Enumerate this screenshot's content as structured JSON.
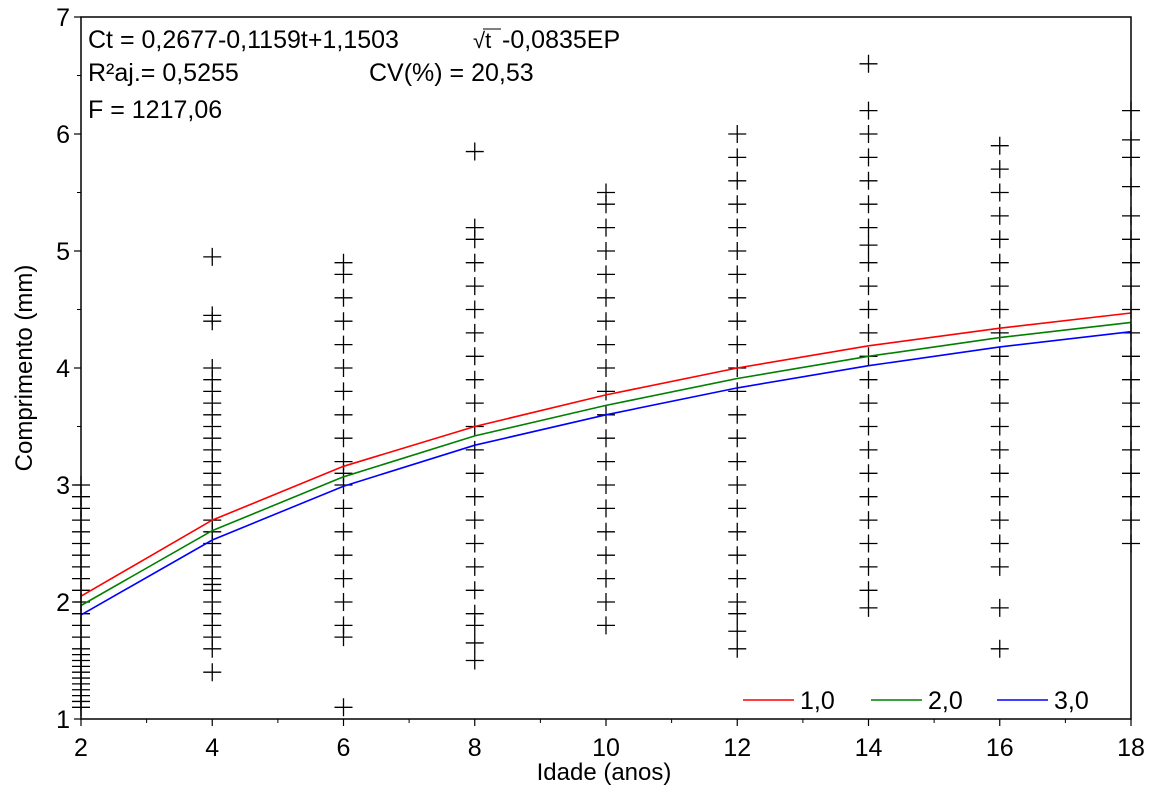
{
  "chart_data": {
    "type": "scatter",
    "annotations": {
      "equation_prefix": "Ct = 0,2677-0,1159t+1,1503",
      "equation_sqrt": "√t",
      "equation_suffix": "-0,0835EP",
      "r2": "R²aj.= 0,5255",
      "cv": "CV(%) = 20,53",
      "f": "F = 1217,06"
    },
    "xlabel": "Idade (anos)",
    "ylabel": "Comprimento (mm)",
    "xlim": [
      2,
      18
    ],
    "ylim": [
      1,
      7
    ],
    "x_ticks": [
      2,
      4,
      6,
      8,
      10,
      12,
      14,
      16,
      18
    ],
    "y_ticks": [
      1,
      2,
      3,
      4,
      5,
      6,
      7
    ],
    "x_tick_labels": [
      "2",
      "4",
      "6",
      "8",
      "10",
      "12",
      "14",
      "16",
      "18"
    ],
    "y_tick_labels": [
      "1",
      "2",
      "3",
      "4",
      "5",
      "6",
      "7"
    ],
    "grid": false,
    "legend_position": "bottom-right",
    "observations": [
      {
        "x": 2,
        "y": [
          1.1,
          1.15,
          1.2,
          1.25,
          1.3,
          1.35,
          1.4,
          1.45,
          1.5,
          1.55,
          1.6,
          1.7,
          1.8,
          1.9,
          2.0,
          2.1,
          2.2,
          2.3,
          2.4,
          2.5,
          2.6,
          2.7,
          2.8,
          2.9,
          3.0
        ]
      },
      {
        "x": 4,
        "y": [
          1.4,
          1.6,
          1.7,
          1.8,
          1.9,
          2.0,
          2.1,
          2.15,
          2.2,
          2.3,
          2.4,
          2.5,
          2.6,
          2.7,
          2.8,
          2.9,
          3.0,
          3.1,
          3.2,
          3.3,
          3.4,
          3.5,
          3.6,
          3.7,
          3.8,
          3.9,
          4.0,
          4.4,
          4.45,
          4.95
        ]
      },
      {
        "x": 6,
        "y": [
          1.1,
          1.7,
          1.8,
          2.0,
          2.2,
          2.4,
          2.6,
          2.8,
          3.0,
          3.1,
          3.2,
          3.4,
          3.6,
          3.8,
          4.0,
          4.2,
          4.4,
          4.6,
          4.8,
          4.9
        ]
      },
      {
        "x": 8,
        "y": [
          1.5,
          1.65,
          1.8,
          1.9,
          2.1,
          2.3,
          2.5,
          2.7,
          2.9,
          3.1,
          3.3,
          3.5,
          3.7,
          3.9,
          4.1,
          4.3,
          4.5,
          4.7,
          4.9,
          5.1,
          5.2,
          5.85
        ]
      },
      {
        "x": 10,
        "y": [
          1.8,
          2.0,
          2.2,
          2.4,
          2.6,
          2.8,
          3.0,
          3.2,
          3.4,
          3.6,
          3.8,
          4.0,
          4.2,
          4.4,
          4.6,
          4.8,
          5.0,
          5.2,
          5.4,
          5.5
        ]
      },
      {
        "x": 12,
        "y": [
          1.6,
          1.75,
          1.9,
          2.0,
          2.2,
          2.4,
          2.6,
          2.8,
          3.0,
          3.2,
          3.4,
          3.6,
          3.8,
          4.0,
          4.2,
          4.4,
          4.6,
          4.8,
          5.0,
          5.2,
          5.4,
          5.6,
          5.8,
          6.0
        ]
      },
      {
        "x": 14,
        "y": [
          1.95,
          2.1,
          2.3,
          2.5,
          2.7,
          2.9,
          3.1,
          3.3,
          3.5,
          3.7,
          3.9,
          4.1,
          4.3,
          4.5,
          4.7,
          4.9,
          5.05,
          5.2,
          5.4,
          5.6,
          5.8,
          6.0,
          6.2,
          6.6
        ]
      },
      {
        "x": 16,
        "y": [
          1.6,
          1.95,
          2.3,
          2.5,
          2.7,
          2.9,
          3.1,
          3.3,
          3.5,
          3.7,
          3.9,
          4.1,
          4.3,
          4.5,
          4.7,
          4.9,
          5.1,
          5.3,
          5.5,
          5.7,
          5.9
        ]
      },
      {
        "x": 18,
        "y": [
          2.5,
          2.7,
          2.9,
          3.1,
          3.3,
          3.5,
          3.7,
          3.9,
          4.1,
          4.3,
          4.5,
          4.7,
          4.9,
          5.1,
          5.3,
          5.55,
          5.8,
          5.95,
          6.2
        ]
      }
    ],
    "series": [
      {
        "name": "1,0",
        "color": "#ff0000",
        "x": [
          2,
          4,
          6,
          8,
          10,
          12,
          14,
          16,
          18
        ],
        "y": [
          2.05,
          2.7,
          3.16,
          3.5,
          3.77,
          4.0,
          4.19,
          4.34,
          4.47
        ]
      },
      {
        "name": "2,0",
        "color": "#008000",
        "x": [
          2,
          4,
          6,
          8,
          10,
          12,
          14,
          16,
          18
        ],
        "y": [
          1.97,
          2.61,
          3.07,
          3.42,
          3.68,
          3.91,
          4.1,
          4.26,
          4.39
        ]
      },
      {
        "name": "3,0",
        "color": "#0000ff",
        "x": [
          2,
          4,
          6,
          8,
          10,
          12,
          14,
          16,
          18
        ],
        "y": [
          1.89,
          2.53,
          2.99,
          3.34,
          3.6,
          3.83,
          4.02,
          4.18,
          4.31
        ]
      }
    ]
  }
}
